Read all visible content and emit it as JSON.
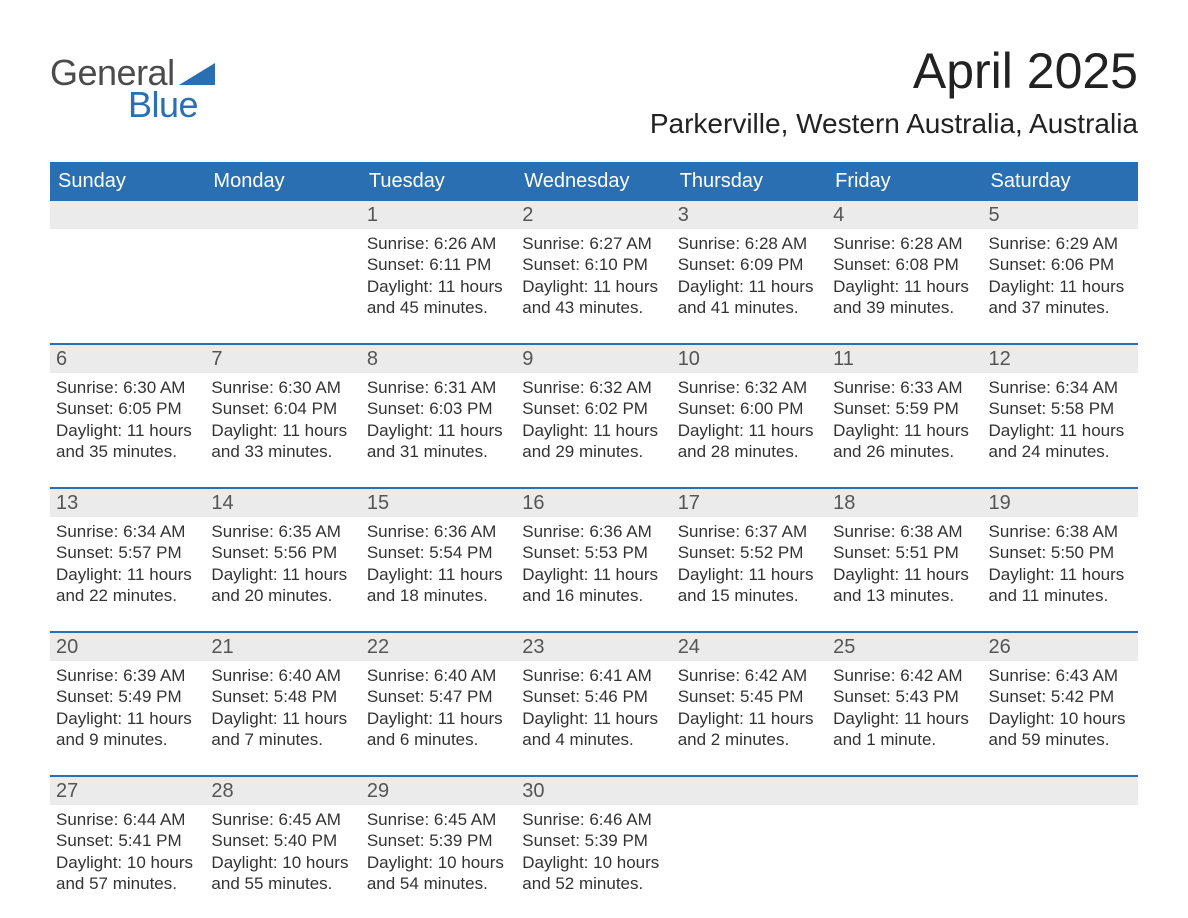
{
  "logo": {
    "line1": "General",
    "line2": "Blue"
  },
  "title": "April 2025",
  "subtitle": "Parkerville, Western Australia, Australia",
  "colors": {
    "header_bg": "#2b6fb3",
    "daynum_bg": "#ebebeb",
    "rule": "#2b6fb3",
    "text": "#333333",
    "logo_gray": "#4b4b4b"
  },
  "day_names": [
    "Sunday",
    "Monday",
    "Tuesday",
    "Wednesday",
    "Thursday",
    "Friday",
    "Saturday"
  ],
  "weeks": [
    [
      null,
      null,
      {
        "n": "1",
        "sunrise": "Sunrise: 6:26 AM",
        "sunset": "Sunset: 6:11 PM",
        "daylight": "Daylight: 11 hours and 45 minutes."
      },
      {
        "n": "2",
        "sunrise": "Sunrise: 6:27 AM",
        "sunset": "Sunset: 6:10 PM",
        "daylight": "Daylight: 11 hours and 43 minutes."
      },
      {
        "n": "3",
        "sunrise": "Sunrise: 6:28 AM",
        "sunset": "Sunset: 6:09 PM",
        "daylight": "Daylight: 11 hours and 41 minutes."
      },
      {
        "n": "4",
        "sunrise": "Sunrise: 6:28 AM",
        "sunset": "Sunset: 6:08 PM",
        "daylight": "Daylight: 11 hours and 39 minutes."
      },
      {
        "n": "5",
        "sunrise": "Sunrise: 6:29 AM",
        "sunset": "Sunset: 6:06 PM",
        "daylight": "Daylight: 11 hours and 37 minutes."
      }
    ],
    [
      {
        "n": "6",
        "sunrise": "Sunrise: 6:30 AM",
        "sunset": "Sunset: 6:05 PM",
        "daylight": "Daylight: 11 hours and 35 minutes."
      },
      {
        "n": "7",
        "sunrise": "Sunrise: 6:30 AM",
        "sunset": "Sunset: 6:04 PM",
        "daylight": "Daylight: 11 hours and 33 minutes."
      },
      {
        "n": "8",
        "sunrise": "Sunrise: 6:31 AM",
        "sunset": "Sunset: 6:03 PM",
        "daylight": "Daylight: 11 hours and 31 minutes."
      },
      {
        "n": "9",
        "sunrise": "Sunrise: 6:32 AM",
        "sunset": "Sunset: 6:02 PM",
        "daylight": "Daylight: 11 hours and 29 minutes."
      },
      {
        "n": "10",
        "sunrise": "Sunrise: 6:32 AM",
        "sunset": "Sunset: 6:00 PM",
        "daylight": "Daylight: 11 hours and 28 minutes."
      },
      {
        "n": "11",
        "sunrise": "Sunrise: 6:33 AM",
        "sunset": "Sunset: 5:59 PM",
        "daylight": "Daylight: 11 hours and 26 minutes."
      },
      {
        "n": "12",
        "sunrise": "Sunrise: 6:34 AM",
        "sunset": "Sunset: 5:58 PM",
        "daylight": "Daylight: 11 hours and 24 minutes."
      }
    ],
    [
      {
        "n": "13",
        "sunrise": "Sunrise: 6:34 AM",
        "sunset": "Sunset: 5:57 PM",
        "daylight": "Daylight: 11 hours and 22 minutes."
      },
      {
        "n": "14",
        "sunrise": "Sunrise: 6:35 AM",
        "sunset": "Sunset: 5:56 PM",
        "daylight": "Daylight: 11 hours and 20 minutes."
      },
      {
        "n": "15",
        "sunrise": "Sunrise: 6:36 AM",
        "sunset": "Sunset: 5:54 PM",
        "daylight": "Daylight: 11 hours and 18 minutes."
      },
      {
        "n": "16",
        "sunrise": "Sunrise: 6:36 AM",
        "sunset": "Sunset: 5:53 PM",
        "daylight": "Daylight: 11 hours and 16 minutes."
      },
      {
        "n": "17",
        "sunrise": "Sunrise: 6:37 AM",
        "sunset": "Sunset: 5:52 PM",
        "daylight": "Daylight: 11 hours and 15 minutes."
      },
      {
        "n": "18",
        "sunrise": "Sunrise: 6:38 AM",
        "sunset": "Sunset: 5:51 PM",
        "daylight": "Daylight: 11 hours and 13 minutes."
      },
      {
        "n": "19",
        "sunrise": "Sunrise: 6:38 AM",
        "sunset": "Sunset: 5:50 PM",
        "daylight": "Daylight: 11 hours and 11 minutes."
      }
    ],
    [
      {
        "n": "20",
        "sunrise": "Sunrise: 6:39 AM",
        "sunset": "Sunset: 5:49 PM",
        "daylight": "Daylight: 11 hours and 9 minutes."
      },
      {
        "n": "21",
        "sunrise": "Sunrise: 6:40 AM",
        "sunset": "Sunset: 5:48 PM",
        "daylight": "Daylight: 11 hours and 7 minutes."
      },
      {
        "n": "22",
        "sunrise": "Sunrise: 6:40 AM",
        "sunset": "Sunset: 5:47 PM",
        "daylight": "Daylight: 11 hours and 6 minutes."
      },
      {
        "n": "23",
        "sunrise": "Sunrise: 6:41 AM",
        "sunset": "Sunset: 5:46 PM",
        "daylight": "Daylight: 11 hours and 4 minutes."
      },
      {
        "n": "24",
        "sunrise": "Sunrise: 6:42 AM",
        "sunset": "Sunset: 5:45 PM",
        "daylight": "Daylight: 11 hours and 2 minutes."
      },
      {
        "n": "25",
        "sunrise": "Sunrise: 6:42 AM",
        "sunset": "Sunset: 5:43 PM",
        "daylight": "Daylight: 11 hours and 1 minute."
      },
      {
        "n": "26",
        "sunrise": "Sunrise: 6:43 AM",
        "sunset": "Sunset: 5:42 PM",
        "daylight": "Daylight: 10 hours and 59 minutes."
      }
    ],
    [
      {
        "n": "27",
        "sunrise": "Sunrise: 6:44 AM",
        "sunset": "Sunset: 5:41 PM",
        "daylight": "Daylight: 10 hours and 57 minutes."
      },
      {
        "n": "28",
        "sunrise": "Sunrise: 6:45 AM",
        "sunset": "Sunset: 5:40 PM",
        "daylight": "Daylight: 10 hours and 55 minutes."
      },
      {
        "n": "29",
        "sunrise": "Sunrise: 6:45 AM",
        "sunset": "Sunset: 5:39 PM",
        "daylight": "Daylight: 10 hours and 54 minutes."
      },
      {
        "n": "30",
        "sunrise": "Sunrise: 6:46 AM",
        "sunset": "Sunset: 5:39 PM",
        "daylight": "Daylight: 10 hours and 52 minutes."
      },
      null,
      null,
      null
    ]
  ]
}
